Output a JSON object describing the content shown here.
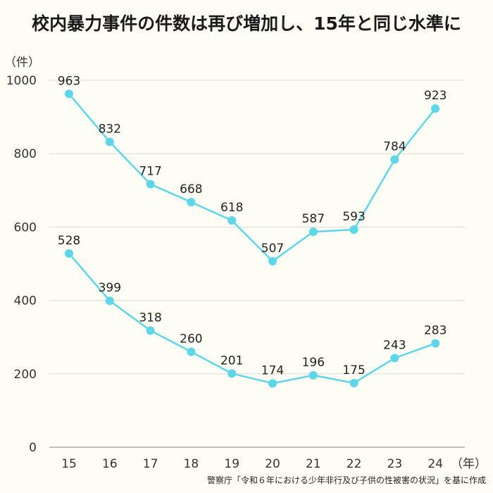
{
  "title": "校内暴力事件の件数は再び増加し、15年と同じ水準に",
  "source": "警察庁「令和６年における少年非行及び子供の性被害の状況」を基に作成",
  "chart_data": {
    "type": "line",
    "ylabel": "（件）",
    "xlabel": "（年）",
    "ylim": [
      0,
      1000
    ],
    "yticks": [
      "0",
      "200",
      "400",
      "600",
      "800",
      "1000"
    ],
    "categories": [
      "15",
      "16",
      "17",
      "18",
      "19",
      "20",
      "21",
      "22",
      "23",
      "24"
    ],
    "grid": true,
    "color": "#5fd6e8",
    "series": [
      {
        "values": [
          963,
          832,
          717,
          668,
          618,
          507,
          587,
          593,
          784,
          923
        ]
      },
      {
        "values": [
          528,
          399,
          318,
          260,
          201,
          174,
          196,
          175,
          243,
          283
        ]
      }
    ]
  }
}
